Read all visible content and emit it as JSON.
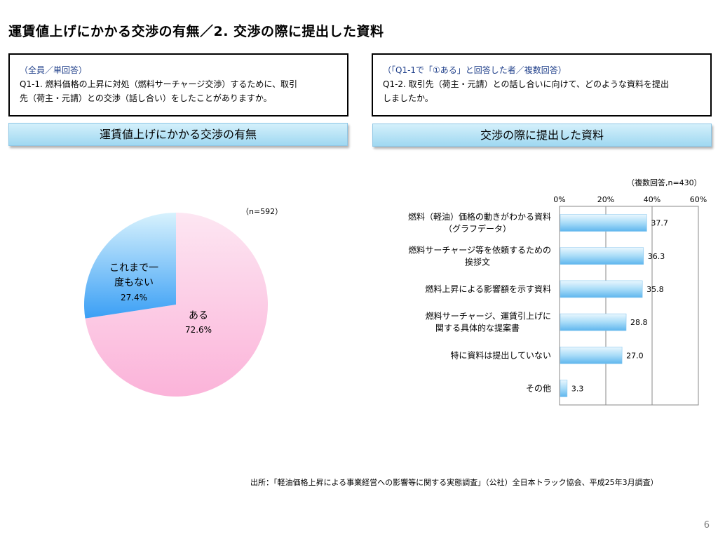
{
  "title": "運賃値上げにかかる交渉の有無／2. 交渉の際に提出した資料",
  "left_box": {
    "sub": "（全員／単回答）",
    "line1": "Q1-1. 燃料価格の上昇に対処（燃料サーチャージ交渉）するために、取引",
    "line2": "先（荷主・元請）との交渉（話し合い）をしたことがありますか。"
  },
  "right_box": {
    "sub": "（「Q1-1で「①ある」と回答した者／複数回答）",
    "line1": "Q1-2. 取引先（荷主・元請）との話し合いに向けて、どのような資料を提出",
    "line2": "しましたか。"
  },
  "left_header": "運賃値上げにかかる交渉の有無",
  "right_header": "交渉の際に提出した資料",
  "pie_note": "（n=592）",
  "bar_note": "（複数回答,n=430）",
  "source": "出所：「軽油価格上昇による事業経営への影響等に関する実態調査」（公社）全日本トラック協会、平成25年3月調査）",
  "page_number": "6",
  "chart_data": [
    {
      "type": "pie",
      "n": 592,
      "slices": [
        {
          "label": "ある",
          "value": 72.6,
          "display": "72.6%",
          "color_top": "#fde6f2",
          "color_bottom": "#fbb3d9"
        },
        {
          "label_lines": [
            "これまで一",
            "度もない"
          ],
          "value": 27.4,
          "display": "27.4%",
          "color_top": "#d8f2fd",
          "color_bottom": "#3a9ff5"
        }
      ]
    },
    {
      "type": "bar",
      "orientation": "horizontal",
      "n": 430,
      "xlim": [
        0,
        60
      ],
      "ticks": [
        "0%",
        "20%",
        "40%",
        "60%"
      ],
      "tick_values": [
        0,
        20,
        40,
        60
      ],
      "grid": true,
      "categories": [
        [
          "燃料（軽油）価格の動きがわかる資料",
          "（グラフデータ）"
        ],
        [
          "燃料サーチャージ等を依頼するための",
          "挨拶文"
        ],
        [
          "燃料上昇による影響額を示す資料"
        ],
        [
          "燃料サーチャージ、運賃引上げに",
          "関する具体的な提案書"
        ],
        [
          "特に資料は提出していない"
        ],
        [
          "その他"
        ]
      ],
      "values": [
        37.7,
        36.3,
        35.8,
        28.8,
        27.0,
        3.3
      ],
      "value_labels": [
        "37.7",
        "36.3",
        "35.8",
        "28.8",
        "27.0",
        "3.3"
      ],
      "bar_color": "#5fb6ee"
    }
  ]
}
